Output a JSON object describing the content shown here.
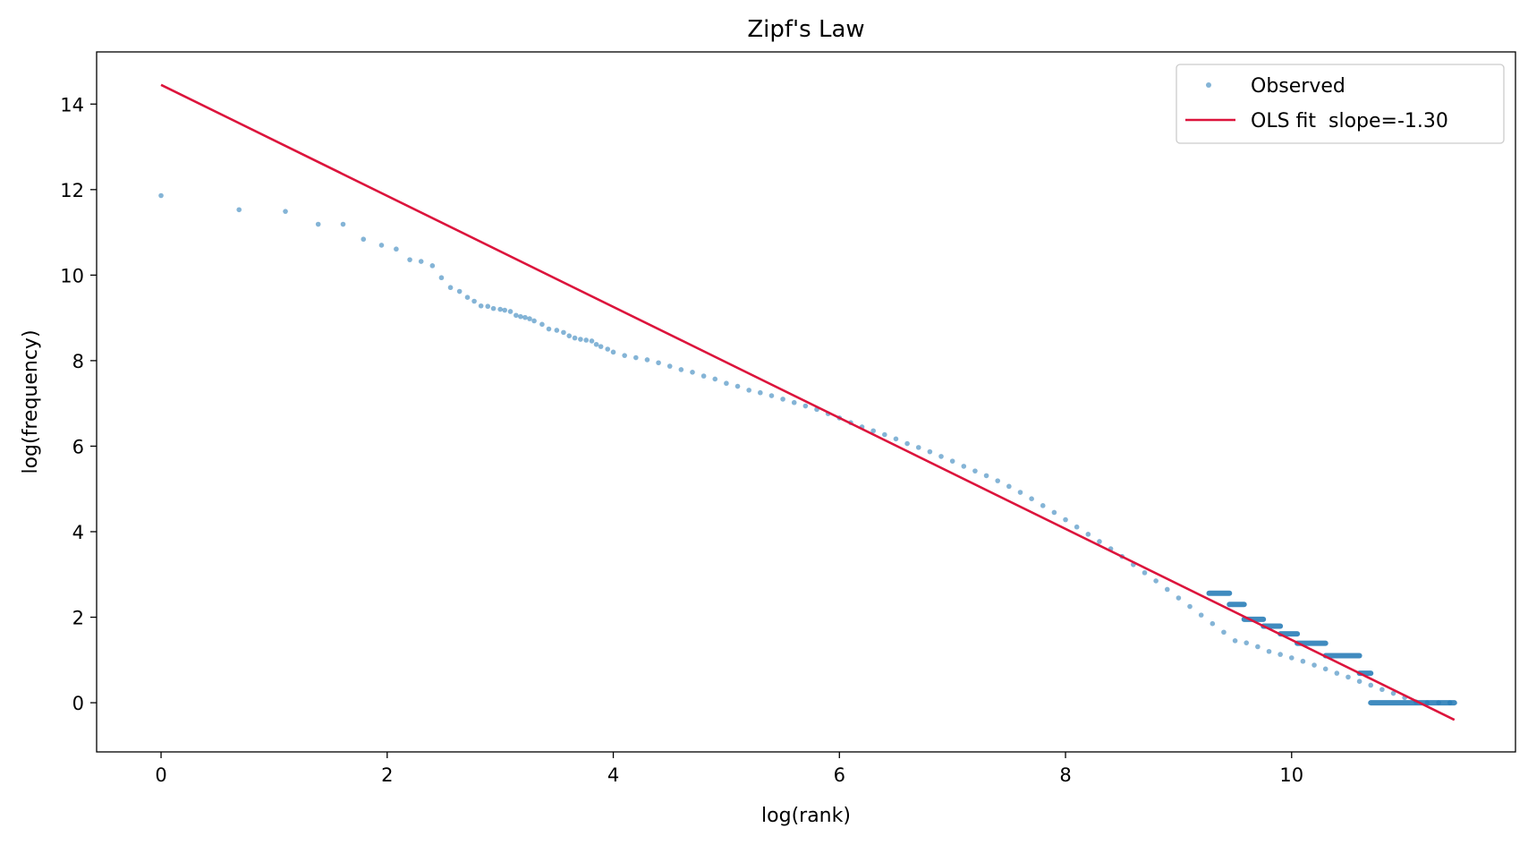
{
  "chart_data": {
    "type": "scatter",
    "title": "Zipf's Law",
    "xlabel": "log(rank)",
    "ylabel": "log(frequency)",
    "xlim": [
      -0.57,
      11.98
    ],
    "ylim": [
      -1.15,
      15.22
    ],
    "xticks": [
      0,
      2,
      4,
      6,
      8,
      10
    ],
    "yticks": [
      0,
      2,
      4,
      6,
      8,
      10,
      12,
      14
    ],
    "grid": false,
    "legend_position": "top-right",
    "legend": [
      {
        "label": "Observed",
        "kind": "marker",
        "color": "#1f77b4"
      },
      {
        "label": "OLS fit  slope=-1.30",
        "kind": "line",
        "color": "#dc143c"
      }
    ],
    "series": [
      {
        "name": "Observed",
        "kind": "scatter",
        "color": "#1f77b4",
        "x": [
          0.0,
          0.69,
          1.1,
          1.39,
          1.61,
          1.79,
          1.95,
          2.08,
          2.2,
          2.3,
          2.4,
          2.48,
          2.56,
          2.64,
          2.71,
          2.77,
          2.83,
          2.89,
          2.94,
          3.0,
          3.04,
          3.09,
          3.14,
          3.18,
          3.22,
          3.26,
          3.3,
          3.37,
          3.43,
          3.5,
          3.56,
          3.61,
          3.66,
          3.71,
          3.76,
          3.81,
          3.85,
          3.89,
          3.95,
          4.0,
          4.1,
          4.2,
          4.3,
          4.4,
          4.5,
          4.6,
          4.7,
          4.8,
          4.9,
          5.0,
          5.1,
          5.2,
          5.3,
          5.4,
          5.5,
          5.6,
          5.7,
          5.8,
          5.9,
          6.0,
          6.1,
          6.2,
          6.3,
          6.4,
          6.5,
          6.6,
          6.7,
          6.8,
          6.9,
          7.0,
          7.1,
          7.2,
          7.3,
          7.4,
          7.5,
          7.6,
          7.7,
          7.8,
          7.9,
          8.0,
          8.1,
          8.2,
          8.3,
          8.4,
          8.5,
          8.6,
          8.7,
          8.8,
          8.9,
          9.0,
          9.1,
          9.2,
          9.3,
          9.4,
          9.5,
          9.6,
          9.7,
          9.8,
          9.9,
          10.0,
          10.1,
          10.2,
          10.3,
          10.4,
          10.5,
          10.6,
          10.7,
          10.8,
          10.9,
          11.0,
          11.1,
          11.2,
          11.3,
          11.4
        ],
        "y": [
          11.86,
          11.53,
          11.49,
          11.19,
          11.19,
          10.84,
          10.7,
          10.61,
          10.36,
          10.32,
          10.22,
          9.94,
          9.71,
          9.62,
          9.48,
          9.39,
          9.28,
          9.27,
          9.22,
          9.2,
          9.18,
          9.15,
          9.06,
          9.03,
          9.01,
          8.98,
          8.93,
          8.85,
          8.74,
          8.71,
          8.66,
          8.58,
          8.53,
          8.5,
          8.48,
          8.46,
          8.38,
          8.33,
          8.27,
          8.2,
          8.12,
          8.07,
          8.02,
          7.95,
          7.87,
          7.79,
          7.73,
          7.64,
          7.57,
          7.47,
          7.4,
          7.31,
          7.25,
          7.18,
          7.1,
          7.02,
          6.94,
          6.86,
          6.76,
          6.66,
          6.55,
          6.45,
          6.36,
          6.27,
          6.17,
          6.06,
          5.97,
          5.87,
          5.76,
          5.65,
          5.53,
          5.42,
          5.31,
          5.19,
          5.06,
          4.92,
          4.77,
          4.61,
          4.45,
          4.28,
          4.11,
          3.94,
          3.77,
          3.6,
          3.42,
          3.23,
          3.04,
          2.85,
          2.65,
          2.45,
          2.25,
          2.05,
          1.85,
          1.65,
          1.45,
          1.4,
          1.31,
          1.2,
          1.13,
          1.05,
          0.97,
          0.88,
          0.79,
          0.69,
          0.6,
          0.5,
          0.41,
          0.31,
          0.22,
          0.12,
          0.02,
          0.0,
          0.0,
          0.0
        ]
      },
      {
        "name": "OLS fit  slope=-1.30",
        "kind": "line",
        "color": "#dc143c",
        "x": [
          0.0,
          11.44
        ],
        "y": [
          14.45,
          -0.4
        ]
      }
    ],
    "segments": [
      {
        "x0": 9.27,
        "x1": 9.45,
        "y": 2.56
      },
      {
        "x0": 9.45,
        "x1": 9.58,
        "y": 2.3
      },
      {
        "x0": 9.58,
        "x1": 9.75,
        "y": 1.95
      },
      {
        "x0": 9.75,
        "x1": 9.9,
        "y": 1.79
      },
      {
        "x0": 9.9,
        "x1": 10.05,
        "y": 1.61
      },
      {
        "x0": 10.05,
        "x1": 10.3,
        "y": 1.39
      },
      {
        "x0": 10.3,
        "x1": 10.6,
        "y": 1.1
      },
      {
        "x0": 10.6,
        "x1": 10.7,
        "y": 0.69
      },
      {
        "x0": 10.7,
        "x1": 11.44,
        "y": 0.0
      }
    ]
  }
}
